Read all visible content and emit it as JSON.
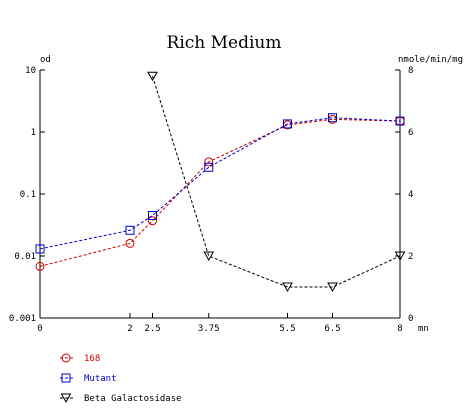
{
  "chart_data": {
    "type": "line",
    "title": "Rich Medium",
    "x_unit": "mn",
    "left_unit": "od",
    "right_unit": "nmole/min/mg",
    "x_ticks": [
      {
        "value": 0,
        "label": "0"
      },
      {
        "value": 2,
        "label": "2"
      },
      {
        "value": 2.5,
        "label": "2.5"
      },
      {
        "value": 3.75,
        "label": "3.75"
      },
      {
        "value": 5.5,
        "label": "5.5"
      },
      {
        "value": 6.5,
        "label": "6.5"
      },
      {
        "value": 8,
        "label": "8"
      }
    ],
    "xlim": [
      0,
      8
    ],
    "left_axis": {
      "scale": "log",
      "ylim": [
        0.001,
        10
      ],
      "ticks": [
        {
          "value": 0.001,
          "label": "0.001"
        },
        {
          "value": 0.01,
          "label": "0.01"
        },
        {
          "value": 0.1,
          "label": "0.1"
        },
        {
          "value": 1,
          "label": "1"
        },
        {
          "value": 10,
          "label": "10"
        }
      ]
    },
    "right_axis": {
      "scale": "linear",
      "ylim": [
        0,
        8
      ],
      "ticks": [
        {
          "value": 0,
          "label": "0"
        },
        {
          "value": 2,
          "label": "2"
        },
        {
          "value": 4,
          "label": "4"
        },
        {
          "value": 6,
          "label": "6"
        },
        {
          "value": 8,
          "label": "8"
        }
      ]
    },
    "grid": false,
    "legend_position": "bottom-left",
    "series": [
      {
        "name": "168",
        "axis": "left",
        "marker": "circle",
        "color": "#cc0000",
        "x": [
          0,
          2,
          2.5,
          3.75,
          5.5,
          6.5,
          8
        ],
        "y": [
          0.0068,
          0.016,
          0.037,
          0.33,
          1.3,
          1.6,
          1.5
        ]
      },
      {
        "name": "Mutant",
        "axis": "left",
        "marker": "square",
        "color": "#0000cc",
        "x": [
          0,
          2,
          2.5,
          3.75,
          5.5,
          6.5,
          8
        ],
        "y": [
          0.013,
          0.026,
          0.045,
          0.27,
          1.35,
          1.7,
          1.5
        ]
      },
      {
        "name": "Beta Galactosidase",
        "axis": "right",
        "marker": "triangle-down",
        "color": "#000000",
        "x": [
          2.5,
          3.75,
          5.5,
          6.5,
          8
        ],
        "y": [
          7.8,
          2.0,
          1.0,
          1.0,
          2.0
        ]
      }
    ]
  }
}
